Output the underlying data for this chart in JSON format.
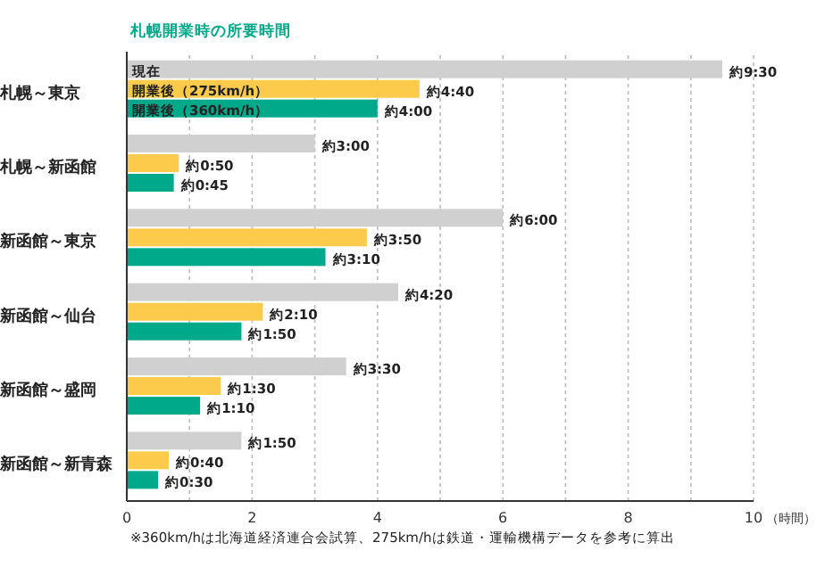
{
  "chart_data": {
    "type": "bar",
    "orientation": "horizontal",
    "title": "札幌開業時の所要時間",
    "xlabel": "（時間）",
    "categories": [
      "札幌～東京",
      "札幌～新函館",
      "新函館～東京",
      "新函館～仙台",
      "新函館～盛岡",
      "新函館～新青森"
    ],
    "series": [
      {
        "name": "現在",
        "color": "#d0d0d0",
        "values": [
          9.5,
          3,
          6,
          4.33,
          3.5,
          1.83
        ],
        "value_labels": [
          "約9:30",
          "約3:00",
          "約6:00",
          "約4:20",
          "約3:30",
          "約1:50"
        ]
      },
      {
        "name": "開業後（275km/h）",
        "color": "#fccb4b",
        "values": [
          4.67,
          0.83,
          3.83,
          2.17,
          1.5,
          0.67
        ],
        "value_labels": [
          "約4:40",
          "約0:50",
          "約3:50",
          "約2:10",
          "約1:30",
          "約0:40"
        ]
      },
      {
        "name": "開業後（360km/h）",
        "color": "#00a98a",
        "values": [
          4,
          0.75,
          3.17,
          1.83,
          1.17,
          0.5
        ],
        "value_labels": [
          "約4:00",
          "約0:45",
          "約3:10",
          "約1:50",
          "約1:10",
          "約0:30"
        ]
      }
    ],
    "xlim": [
      0,
      10
    ],
    "xticks": [
      0,
      {
        "value": 1,
        "label": null
      },
      2,
      {
        "value": 3,
        "label": null
      },
      4,
      {
        "value": 5,
        "label": null
      },
      6,
      {
        "value": 7,
        "label": null
      },
      8,
      {
        "value": 9,
        "label": null
      },
      10
    ],
    "grid": "x",
    "annotations": [
      "※360km/hは北海道経済連合会試算、275km/hは鉄道・運輸機構データを参考に算出"
    ]
  }
}
